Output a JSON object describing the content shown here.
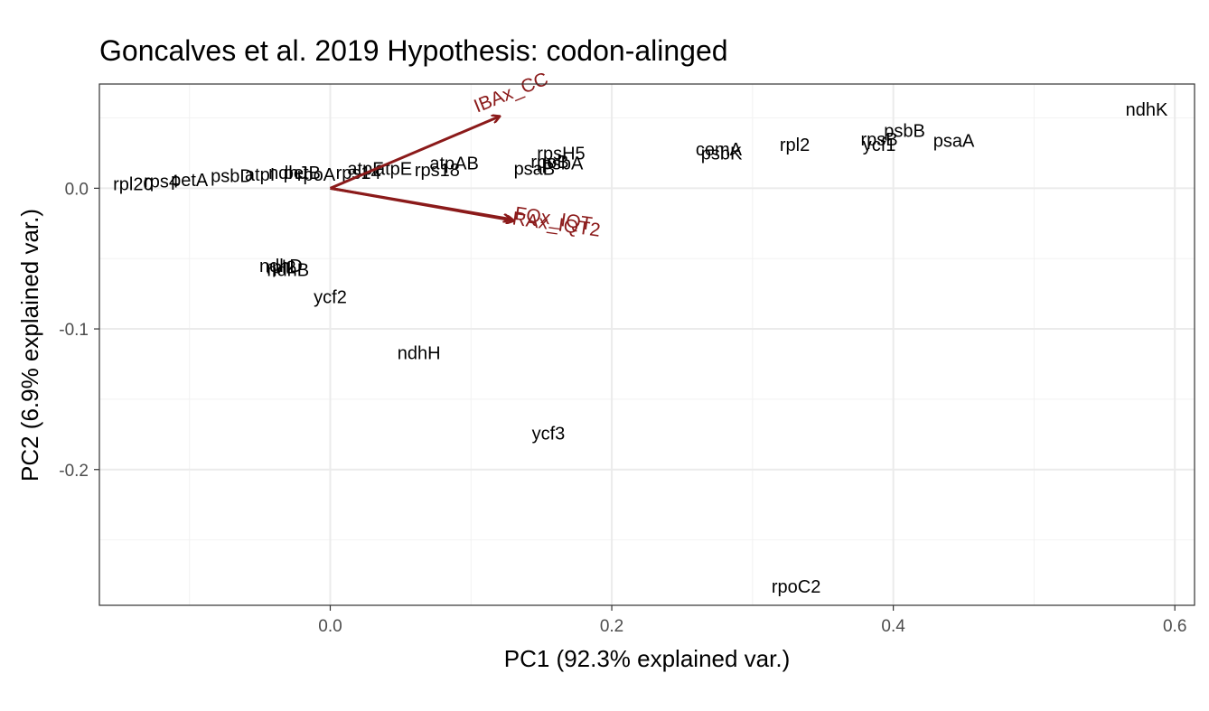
{
  "chart_data": {
    "type": "scatter",
    "title": "Goncalves et al. 2019 Hypothesis:  codon-alinged",
    "xlabel": "PC1 (92.3% explained var.)",
    "ylabel": "PC2 (6.9% explained var.)",
    "xlim": [
      -0.164,
      0.614
    ],
    "ylim": [
      -0.2965,
      0.0741
    ],
    "xticks": [
      0.0,
      0.2,
      0.4,
      0.6
    ],
    "xtick_labels": [
      "0.0",
      "0.2",
      "0.4",
      "0.6"
    ],
    "yticks": [
      0.0,
      -0.1,
      -0.2
    ],
    "ytick_labels": [
      "0.0",
      "-0.1",
      "-0.2"
    ],
    "grid": true,
    "theme": "bw",
    "label_color": "#000000",
    "loading_color": "#8B1A1A",
    "points": [
      {
        "label": "ndhK",
        "x": 0.58,
        "y": 0.056
      },
      {
        "label": "psbB",
        "x": 0.408,
        "y": 0.041
      },
      {
        "label": "rpsB",
        "x": 0.39,
        "y": 0.035
      },
      {
        "label": "ycf1",
        "x": 0.39,
        "y": 0.031
      },
      {
        "label": "psaA",
        "x": 0.443,
        "y": 0.034
      },
      {
        "label": "rpl2",
        "x": 0.33,
        "y": 0.031
      },
      {
        "label": "cemA",
        "x": 0.276,
        "y": 0.028
      },
      {
        "label": "psbK",
        "x": 0.278,
        "y": 0.025
      },
      {
        "label": "rpsH5",
        "x": 0.164,
        "y": 0.025
      },
      {
        "label": "rpoB",
        "x": 0.156,
        "y": 0.019
      },
      {
        "label": "psbA",
        "x": 0.165,
        "y": 0.018
      },
      {
        "label": "psaB",
        "x": 0.145,
        "y": 0.014
      },
      {
        "label": "atpAB",
        "x": 0.088,
        "y": 0.018
      },
      {
        "label": "rps18",
        "x": 0.076,
        "y": 0.013
      },
      {
        "label": "atpE",
        "x": 0.045,
        "y": 0.014
      },
      {
        "label": "atpF",
        "x": 0.025,
        "y": 0.014
      },
      {
        "label": "rps14",
        "x": 0.02,
        "y": 0.011
      },
      {
        "label": "petB",
        "x": -0.02,
        "y": 0.011
      },
      {
        "label": "ndhJ",
        "x": -0.03,
        "y": 0.011
      },
      {
        "label": "rpoA",
        "x": -0.01,
        "y": 0.01
      },
      {
        "label": "atpI",
        "x": -0.05,
        "y": 0.01
      },
      {
        "label": "psbD",
        "x": -0.07,
        "y": 0.009
      },
      {
        "label": "petA",
        "x": -0.1,
        "y": 0.006
      },
      {
        "label": "rps4",
        "x": -0.12,
        "y": 0.005
      },
      {
        "label": "rpl20",
        "x": -0.14,
        "y": 0.003
      },
      {
        "label": "ndhD",
        "x": -0.035,
        "y": -0.055
      },
      {
        "label": "ndhB",
        "x": -0.03,
        "y": -0.058
      },
      {
        "label": "rpl2",
        "x": -0.035,
        "y": -0.056
      },
      {
        "label": "ycf2",
        "x": 0.0,
        "y": -0.077
      },
      {
        "label": "ndhH",
        "x": 0.063,
        "y": -0.117
      },
      {
        "label": "ycf3",
        "x": 0.155,
        "y": -0.174
      },
      {
        "label": "rpoC2",
        "x": 0.331,
        "y": -0.283
      }
    ],
    "loadings": [
      {
        "label": "IBAx_CC",
        "x": 0.12,
        "y": 0.051,
        "label_x": 0.13,
        "label_y": 0.064,
        "angle": -22
      },
      {
        "label": "RAx_IQT2",
        "x": 0.128,
        "y": -0.022,
        "label_x": 0.16,
        "label_y": -0.03,
        "angle": 8
      },
      {
        "label": "FQx_IQT",
        "x": 0.13,
        "y": -0.023,
        "label_x": 0.158,
        "label_y": -0.026,
        "angle": 8
      }
    ]
  }
}
